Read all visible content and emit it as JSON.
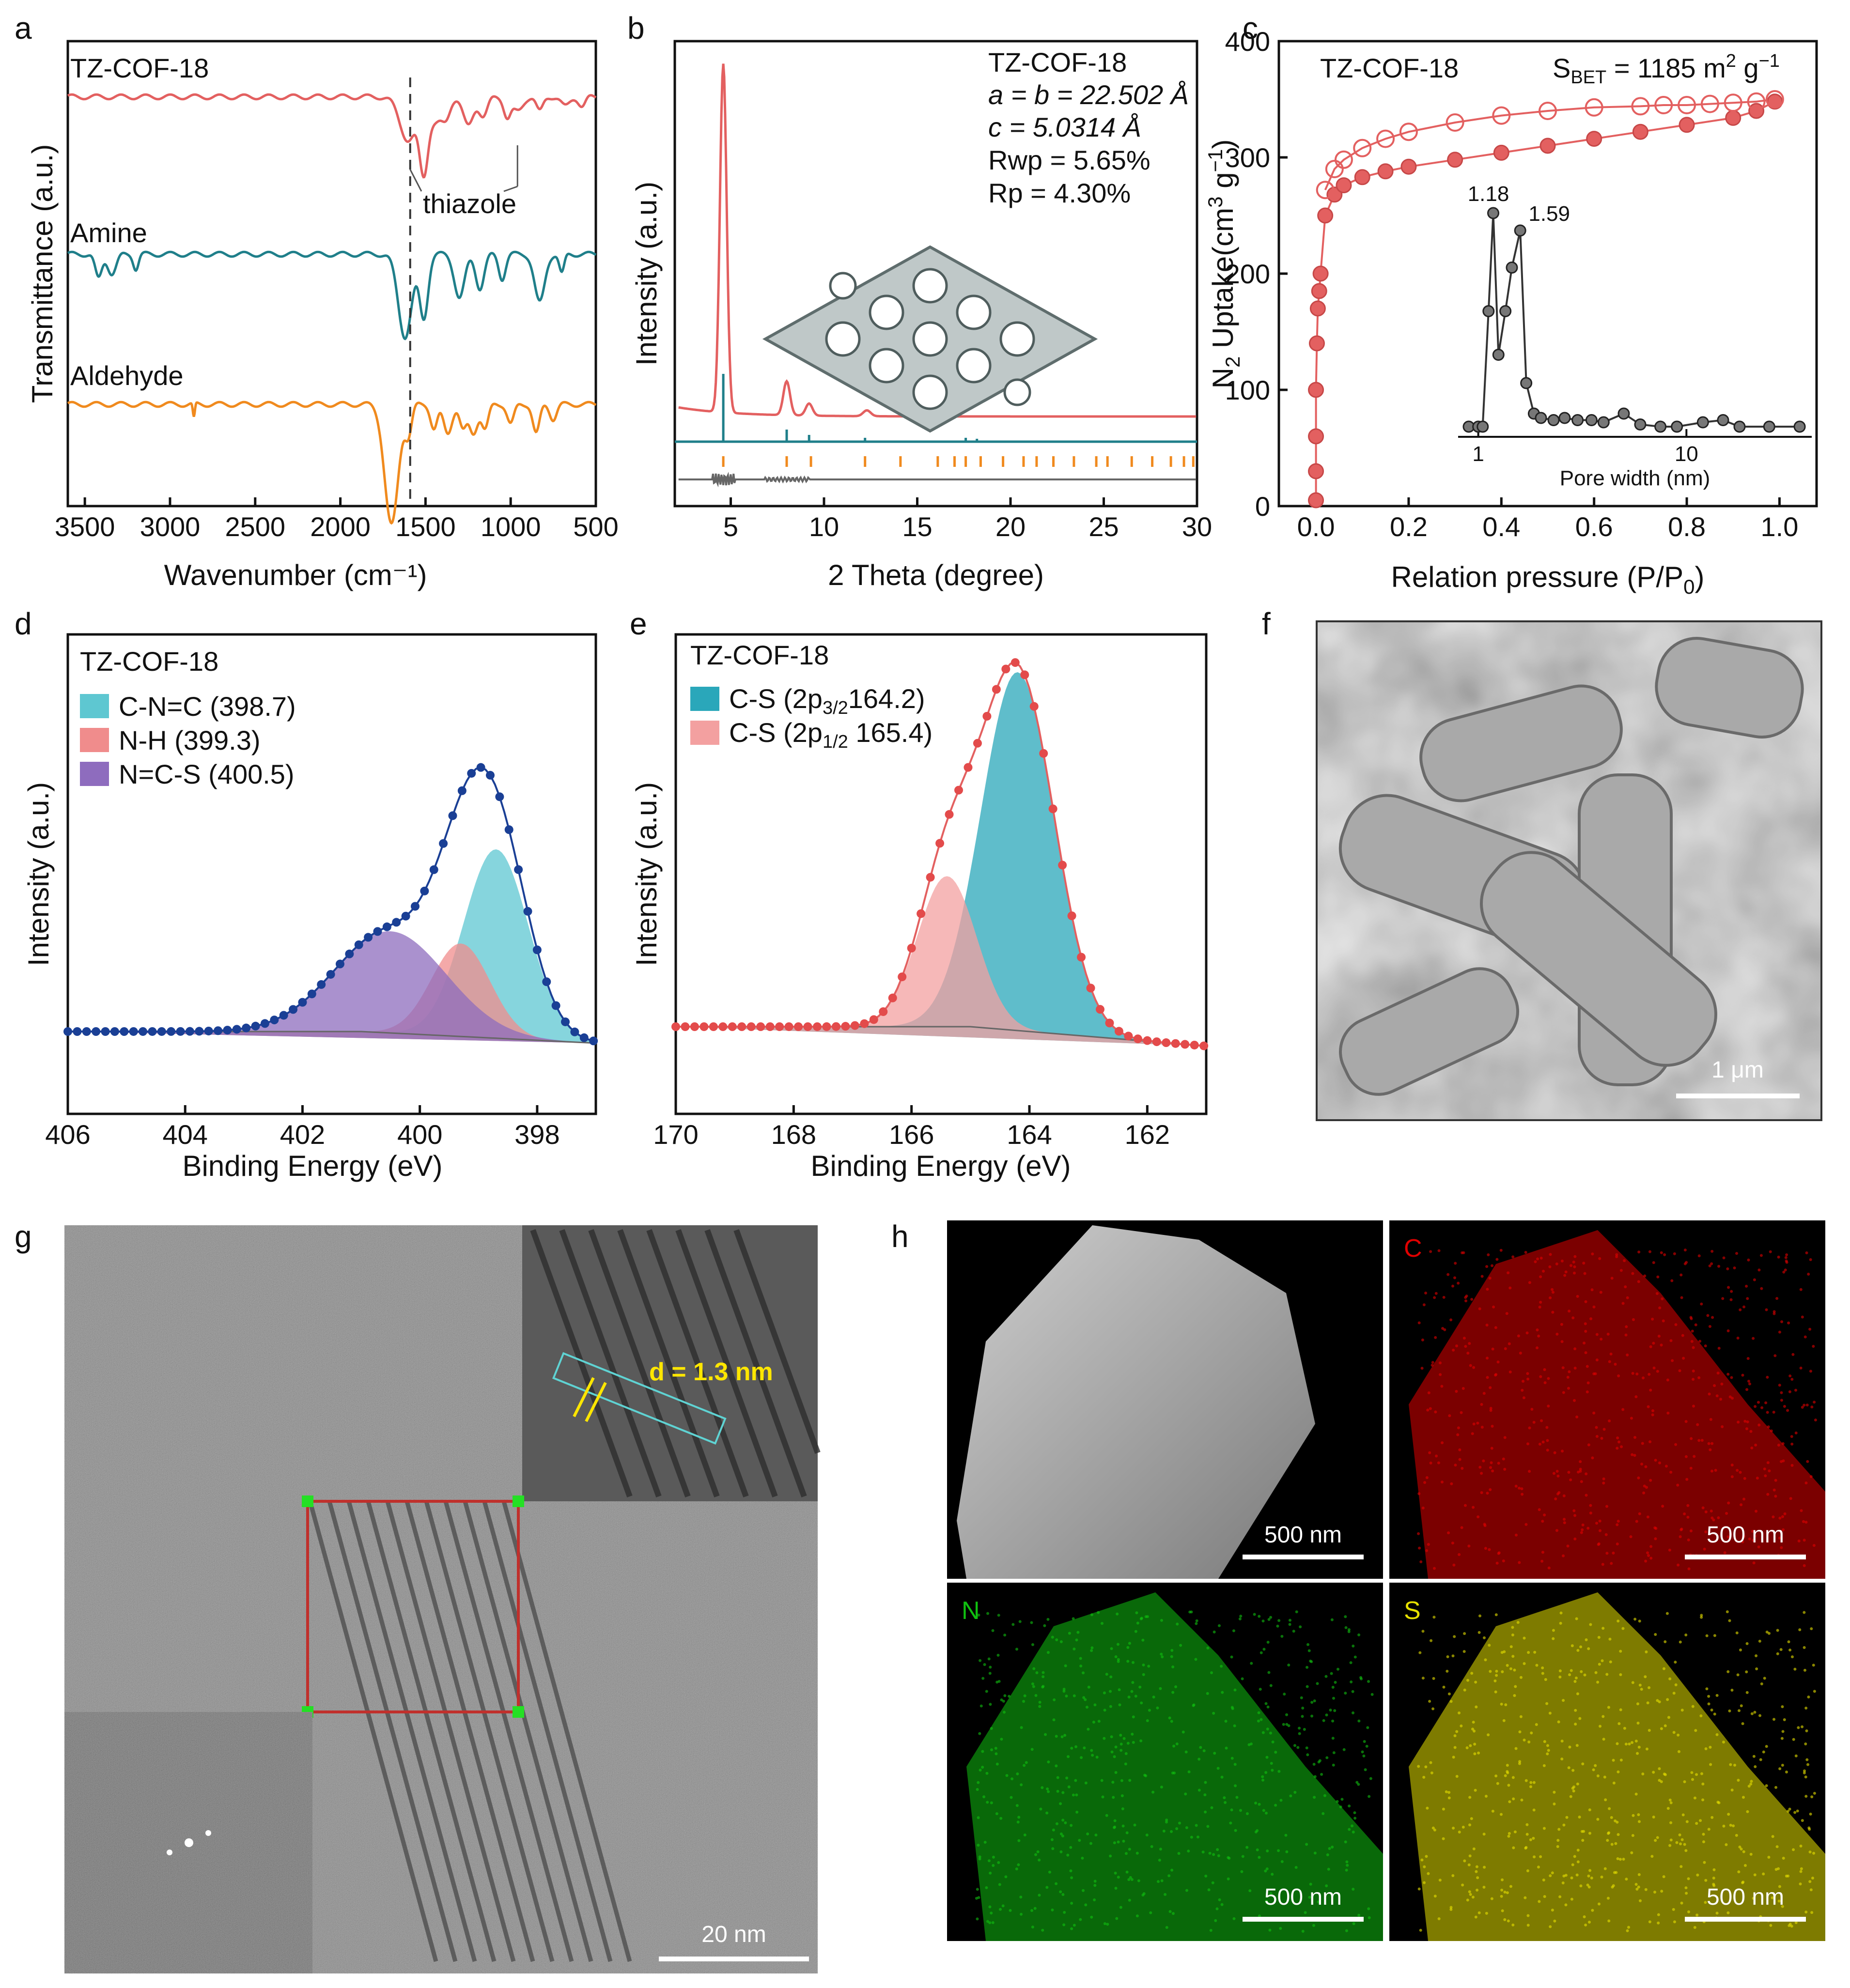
{
  "panel_labels": {
    "a": "a",
    "b": "b",
    "c": "c",
    "d": "d",
    "e": "e",
    "f": "f",
    "g": "g",
    "h": "h"
  },
  "colors": {
    "red": "#e36060",
    "teal": "#1f7f8a",
    "orange": "#f08a1e",
    "navy": "#1a3f95",
    "cyan": "#5ec7d1",
    "pink": "#f08c8c",
    "purple": "#8e6cbe",
    "gray": "#555555",
    "yellow": "#ffe600"
  },
  "chart_data": [
    {
      "panel": "a",
      "type": "line",
      "xlabel": "Wavenumber (cm⁻¹)",
      "ylabel": "Transmittance (a.u.)",
      "xlim": [
        3600,
        500
      ],
      "xticks": [
        "3500",
        "3000",
        "2500",
        "2000",
        "1500",
        "1000",
        "500"
      ],
      "series": [
        {
          "name": "TZ-COF-18",
          "color": "#e36060"
        },
        {
          "name": "Amine",
          "color": "#1f7f8a"
        },
        {
          "name": "Aldehyde",
          "color": "#f08a1e"
        }
      ],
      "annotations": [
        {
          "text": "thiazole",
          "x": [
            1590,
            960
          ]
        }
      ],
      "reference_line_x": 1590
    },
    {
      "panel": "b",
      "type": "line",
      "xlabel": "2 Theta (degree)",
      "ylabel": "Intensity (a.u.)",
      "xlim": [
        2,
        30
      ],
      "xticks": [
        "5",
        "10",
        "15",
        "20",
        "25",
        "30"
      ],
      "info": [
        "TZ-COF-18",
        "a = b = 22.502 Å",
        "c = 5.0314 Å",
        "Rwp = 5.65%",
        "Rp = 4.30%"
      ],
      "peaks_2theta": [
        4.6,
        8.0,
        9.2,
        12.3
      ],
      "bragg_positions": [
        4.6,
        8.0,
        9.3,
        12.2,
        14.1,
        16.1,
        17.0,
        17.6,
        18.4,
        19.6,
        20.7,
        21.4,
        22.3,
        23.4,
        24.6,
        25.2,
        26.5,
        27.6,
        28.6,
        29.3,
        29.8
      ]
    },
    {
      "panel": "c",
      "type": "scatter",
      "title": "TZ-COF-18",
      "bet_label": "S",
      "bet_sub": "BET",
      "bet_value": " = 1185 m",
      "bet_unit_tail": " g",
      "xlabel": "Relation pressure (P/P",
      "xlabel_sub": "0",
      "ylabel": "N",
      "ylabel_rest": " Uptake(cm",
      "ylabel_unit_tail": " g",
      "xlim": [
        -0.08,
        1.08
      ],
      "ylim": [
        0,
        400
      ],
      "xticks": [
        "0.0",
        "0.2",
        "0.4",
        "0.6",
        "0.8",
        "1.0"
      ],
      "yticks": [
        "0",
        "100",
        "200",
        "300",
        "400"
      ],
      "adsorption": [
        [
          0.0,
          5
        ],
        [
          0.0,
          30
        ],
        [
          0.0,
          60
        ],
        [
          0.0,
          100
        ],
        [
          0.002,
          140
        ],
        [
          0.004,
          170
        ],
        [
          0.007,
          185
        ],
        [
          0.01,
          200
        ],
        [
          0.02,
          250
        ],
        [
          0.04,
          268
        ],
        [
          0.06,
          276
        ],
        [
          0.1,
          283
        ],
        [
          0.15,
          288
        ],
        [
          0.2,
          292
        ],
        [
          0.3,
          298
        ],
        [
          0.4,
          304
        ],
        [
          0.5,
          310
        ],
        [
          0.6,
          316
        ],
        [
          0.7,
          322
        ],
        [
          0.8,
          328
        ],
        [
          0.9,
          334
        ],
        [
          0.95,
          340
        ],
        [
          0.99,
          348
        ]
      ],
      "desorption": [
        [
          0.99,
          350
        ],
        [
          0.95,
          348
        ],
        [
          0.9,
          347
        ],
        [
          0.85,
          346
        ],
        [
          0.8,
          345
        ],
        [
          0.75,
          345
        ],
        [
          0.7,
          344
        ],
        [
          0.6,
          343
        ],
        [
          0.5,
          340
        ],
        [
          0.4,
          336
        ],
        [
          0.3,
          330
        ],
        [
          0.2,
          322
        ],
        [
          0.15,
          316
        ],
        [
          0.1,
          308
        ],
        [
          0.06,
          298
        ],
        [
          0.04,
          290
        ],
        [
          0.02,
          272
        ]
      ],
      "inset": {
        "type": "line",
        "xlabel": "Pore width (nm)",
        "xscale": "log",
        "xlim": [
          0.8,
          40
        ],
        "xticks": [
          "1",
          "10"
        ],
        "points": [
          [
            0.9,
            0.02
          ],
          [
            1.0,
            0.02
          ],
          [
            1.05,
            0.02
          ],
          [
            1.12,
            0.55
          ],
          [
            1.18,
            1.0
          ],
          [
            1.25,
            0.35
          ],
          [
            1.35,
            0.55
          ],
          [
            1.45,
            0.75
          ],
          [
            1.59,
            0.92
          ],
          [
            1.7,
            0.22
          ],
          [
            1.85,
            0.08
          ],
          [
            2.0,
            0.06
          ],
          [
            2.3,
            0.05
          ],
          [
            2.6,
            0.06
          ],
          [
            3.0,
            0.05
          ],
          [
            3.5,
            0.05
          ],
          [
            4.0,
            0.04
          ],
          [
            5.0,
            0.08
          ],
          [
            6.0,
            0.03
          ],
          [
            7.5,
            0.02
          ],
          [
            9.0,
            0.02
          ],
          [
            12.0,
            0.04
          ],
          [
            15.0,
            0.05
          ],
          [
            18.0,
            0.02
          ],
          [
            25.0,
            0.02
          ],
          [
            35.0,
            0.02
          ]
        ],
        "peak_labels": [
          "1.18",
          "1.59"
        ]
      }
    },
    {
      "panel": "d",
      "type": "area",
      "title": "TZ-COF-18",
      "xlabel": "Binding Energy (eV)",
      "ylabel": "Intensity (a.u.)",
      "xlim": [
        406,
        397
      ],
      "xticks": [
        "406",
        "404",
        "402",
        "400",
        "398"
      ],
      "series": [
        {
          "name": "C-N=C (398.7)",
          "center": 398.7,
          "amp": 0.65,
          "width": 0.55,
          "color": "#5ec7d1"
        },
        {
          "name": "N-H (399.3)",
          "center": 399.3,
          "amp": 0.32,
          "width": 0.5,
          "color": "#f08c8c"
        },
        {
          "name": "N=C-S (400.5)",
          "center": 400.5,
          "amp": 0.35,
          "width": 0.95,
          "color": "#8e6cbe"
        }
      ]
    },
    {
      "panel": "e",
      "type": "area",
      "title": "TZ-COF-18",
      "xlabel": "Binding Energy (eV)",
      "ylabel": "Intensity (a.u.)",
      "xlim": [
        170,
        161
      ],
      "xticks": [
        "170",
        "168",
        "166",
        "164",
        "162"
      ],
      "series": [
        {
          "name_main": "C-S (2p",
          "name_sub": "3/2",
          "name_tail": "164.2)",
          "center": 164.2,
          "amp": 1.0,
          "width": 0.62,
          "color": "#2aa7ba"
        },
        {
          "name_main": "C-S (2p",
          "name_sub": "1/2",
          "name_tail": " 165.4)",
          "center": 165.4,
          "amp": 0.42,
          "width": 0.5,
          "color": "#f3a0a0"
        }
      ]
    }
  ],
  "panel_f": {
    "scale_bar": "1 μm"
  },
  "panel_g": {
    "d_spacing": "d = 1.3 nm",
    "scale_bar": "20 nm"
  },
  "panel_h": {
    "tiles": [
      {
        "label": "",
        "scale_bar": "500 nm",
        "color": "#ffffff"
      },
      {
        "label": "C",
        "scale_bar": "500 nm",
        "color": "#e00000"
      },
      {
        "label": "N",
        "scale_bar": "500 nm",
        "color": "#10c010"
      },
      {
        "label": "S",
        "scale_bar": "500 nm",
        "color": "#e6e000"
      }
    ]
  }
}
